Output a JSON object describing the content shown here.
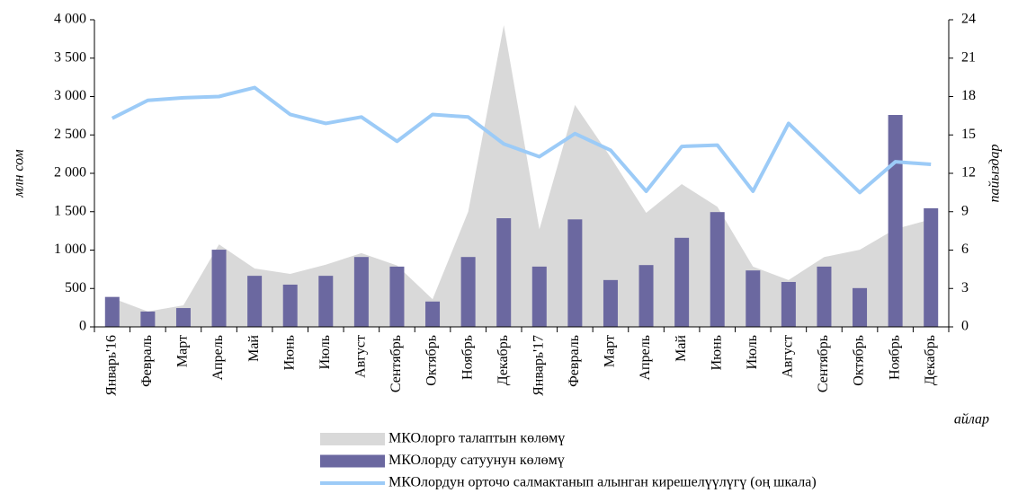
{
  "chart_data": {
    "type": "combo",
    "y_label": "млн сом",
    "y2_label": "пайыздар",
    "x_label": "айлар",
    "categories": [
      "Январь'16",
      "Февраль",
      "Март",
      "Апрель",
      "Май",
      "Июнь",
      "Июль",
      "Август",
      "Сентябрь",
      "Октябрь",
      "Ноябрь",
      "Декабрь",
      "Январь'17",
      "Февраль",
      "Март",
      "Апрель",
      "Май",
      "Июнь",
      "Июль",
      "Август",
      "Сентябрь",
      "Октябрь",
      "Ноябрь",
      "Декабрь"
    ],
    "series": [
      {
        "name": "МКОлорго талаптын көлөмү",
        "type": "area",
        "color": "#d9d9d9",
        "values": [
          375,
          200,
          280,
          1075,
          760,
          690,
          810,
          960,
          800,
          360,
          1500,
          3930,
          1270,
          2890,
          2210,
          1485,
          1860,
          1565,
          785,
          610,
          910,
          1005,
          1275,
          1400
        ]
      },
      {
        "name": "МКОлорду сатуунун көлөмү",
        "type": "bar",
        "color": "#6b68a0",
        "values": [
          390,
          200,
          245,
          1005,
          665,
          550,
          665,
          910,
          785,
          330,
          910,
          1415,
          785,
          1400,
          610,
          805,
          1160,
          1495,
          735,
          585,
          785,
          505,
          2760,
          1545
        ]
      },
      {
        "name": "МКОлордун орточо салмактанып алынган кирешелүүлүгү (оң шкала)",
        "type": "line",
        "color": "#9ccbf7",
        "axis": "y2",
        "values": [
          16.3,
          17.7,
          17.9,
          18.0,
          18.7,
          16.6,
          15.9,
          16.4,
          14.5,
          16.6,
          16.4,
          14.3,
          13.3,
          15.1,
          13.8,
          10.6,
          14.1,
          14.2,
          10.6,
          15.9,
          13.2,
          10.5,
          12.9,
          12.7
        ]
      }
    ],
    "ylim": [
      0,
      4000
    ],
    "yticks": [
      0,
      500,
      {
        "value": 1000,
        "label": "1 000"
      },
      {
        "value": 1500,
        "label": "1 500"
      },
      {
        "value": 2000,
        "label": "2 000"
      },
      {
        "value": 2500,
        "label": "2 500"
      },
      {
        "value": 3000,
        "label": "3 000"
      },
      {
        "value": 3500,
        "label": "3 500"
      },
      {
        "value": 4000,
        "label": "4 000"
      }
    ],
    "y2lim": [
      0,
      24
    ],
    "y2ticks": [
      0,
      3,
      6,
      9,
      12,
      15,
      18,
      21,
      24
    ]
  }
}
